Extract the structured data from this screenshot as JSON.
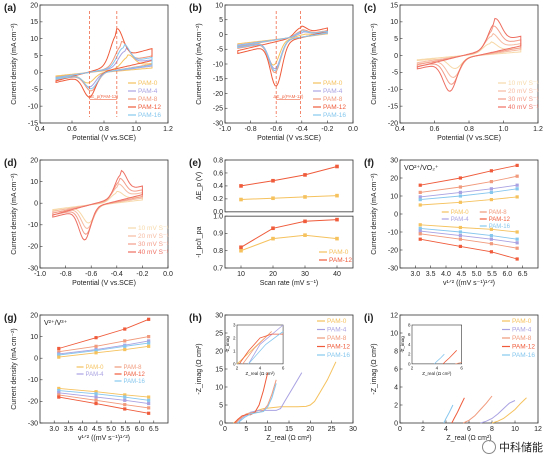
{
  "colors": {
    "PAM-0": "#f5c25e",
    "PAM-4": "#a9a2e2",
    "PAM-8": "#f19a7c",
    "PAM-12": "#ef5b3b",
    "PAM-16": "#86c7ee",
    "scan10": "#f7d9a9",
    "scan20": "#f6bba2",
    "scan30": "#f39c8a",
    "scan40": "#ee6f62",
    "dash": "#ef6a4a"
  },
  "watermark": "中科储能",
  "chart_data": [
    {
      "panel": "(a)",
      "type": "line",
      "xlabel": "Potential (V vs.SCE)",
      "ylabel": "Current density (mA cm⁻²)",
      "xlim": [
        0.4,
        1.2
      ],
      "ylim": [
        -15,
        20
      ],
      "xticks": [
        "0.4",
        "0.6",
        "0.8",
        "1.0",
        "1.2"
      ],
      "yticks": [
        "-15",
        "-10",
        "-5",
        "0",
        "5",
        "10",
        "15",
        "20"
      ],
      "annotation": "ΔE_p(PAM-12)",
      "legend": [
        "PAM-0",
        "PAM-4",
        "PAM-8",
        "PAM-12",
        "PAM-16"
      ],
      "legend_position": "bottom-right",
      "dashed_x": [
        0.71,
        0.88
      ],
      "cv": [
        {
          "name": "PAM-0",
          "x0": 0.5,
          "x1": 1.1,
          "ipa": 6,
          "ipc": -5,
          "pa": 0.95,
          "pc": 0.7
        },
        {
          "name": "PAM-4",
          "x0": 0.5,
          "x1": 1.1,
          "ipa": 8.5,
          "ipc": -7,
          "pa": 0.93,
          "pc": 0.71
        },
        {
          "name": "PAM-8",
          "x0": 0.5,
          "x1": 1.1,
          "ipa": 11,
          "ipc": -9,
          "pa": 0.91,
          "pc": 0.72
        },
        {
          "name": "PAM-12",
          "x0": 0.5,
          "x1": 1.1,
          "ipa": 16,
          "ipc": -12,
          "pa": 0.88,
          "pc": 0.71
        },
        {
          "name": "PAM-16",
          "x0": 0.5,
          "x1": 1.1,
          "ipa": 10,
          "ipc": -8,
          "pa": 0.92,
          "pc": 0.72
        }
      ]
    },
    {
      "panel": "(b)",
      "type": "line",
      "xlabel": "Potential (V vs.SCE)",
      "ylabel": "Current density (mA cm⁻²)",
      "xlim": [
        -1.0,
        0.0
      ],
      "ylim": [
        -30,
        10
      ],
      "xticks": [
        "-1.0",
        "-0.8",
        "-0.6",
        "-0.4",
        "-0.2",
        "0.0"
      ],
      "yticks": [
        "-30",
        "-25",
        "-20",
        "-15",
        "-10",
        "-5",
        "0",
        "5",
        "10"
      ],
      "annotation": "ΔE_p(PAM-12)",
      "legend": [
        "PAM-0",
        "PAM-4",
        "PAM-8",
        "PAM-12",
        "PAM-16"
      ],
      "legend_position": "bottom-right",
      "dashed_x": [
        -0.6,
        -0.41
      ],
      "cv": [
        {
          "name": "PAM-0",
          "x0": -0.9,
          "x1": -0.2,
          "ipa": 1,
          "ipc": -15,
          "pa": -0.38,
          "pc": -0.62
        },
        {
          "name": "PAM-4",
          "x0": -0.9,
          "x1": -0.2,
          "ipa": 2,
          "ipc": -17,
          "pa": -0.39,
          "pc": -0.61
        },
        {
          "name": "PAM-8",
          "x0": -0.9,
          "x1": -0.2,
          "ipa": 3,
          "ipc": -19,
          "pa": -0.4,
          "pc": -0.61
        },
        {
          "name": "PAM-12",
          "x0": -0.9,
          "x1": -0.2,
          "ipa": 5,
          "ipc": -26,
          "pa": -0.41,
          "pc": -0.6
        },
        {
          "name": "PAM-16",
          "x0": -0.9,
          "x1": -0.2,
          "ipa": 2.5,
          "ipc": -18,
          "pa": -0.4,
          "pc": -0.61
        }
      ]
    },
    {
      "panel": "(c)",
      "type": "line",
      "xlabel": "Potential (V vs.SCE)",
      "ylabel": "Current density (mA cm⁻²)",
      "xlim": [
        0.4,
        1.2
      ],
      "ylim": [
        -20,
        15
      ],
      "xticks": [
        "0.4",
        "0.6",
        "0.8",
        "1.0",
        "1.2"
      ],
      "yticks": [
        "-20",
        "-15",
        "-10",
        "-5",
        "0",
        "5",
        "10",
        "15"
      ],
      "legend": [
        "10 mV S⁻¹",
        "20 mV S⁻¹",
        "30 mV S⁻¹",
        "40 mV S⁻¹"
      ],
      "legend_position": "bottom-right",
      "cv": [
        {
          "name": "10 mV S⁻¹",
          "x0": 0.5,
          "x1": 1.1,
          "ipa": 5,
          "ipc": -6,
          "pa": 0.92,
          "pc": 0.72
        },
        {
          "name": "20 mV S⁻¹",
          "x0": 0.5,
          "x1": 1.1,
          "ipa": 8,
          "ipc": -10,
          "pa": 0.93,
          "pc": 0.71
        },
        {
          "name": "30 mV S⁻¹",
          "x0": 0.5,
          "x1": 1.1,
          "ipa": 10.5,
          "ipc": -13,
          "pa": 0.94,
          "pc": 0.7
        },
        {
          "name": "40 mV S⁻¹",
          "x0": 0.5,
          "x1": 1.1,
          "ipa": 13,
          "ipc": -16,
          "pa": 0.95,
          "pc": 0.69
        }
      ]
    },
    {
      "panel": "(d)",
      "type": "line",
      "xlabel": "Potential (V vs.SCE)",
      "ylabel": "Current density (mA cm⁻²)",
      "xlim": [
        -1.0,
        0.0
      ],
      "ylim": [
        -30,
        20
      ],
      "xticks": [
        "-1.0",
        "-0.8",
        "-0.6",
        "-0.4",
        "-0.2",
        "0.0"
      ],
      "yticks": [
        "-30",
        "-20",
        "-10",
        "0",
        "10",
        "20"
      ],
      "legend": [
        "10 mV S⁻¹",
        "20 mV S⁻¹",
        "30 mV S⁻¹",
        "40 mV S⁻¹"
      ],
      "legend_position": "bottom-right",
      "cv": [
        {
          "name": "10 mV S⁻¹",
          "x0": -0.9,
          "x1": -0.2,
          "ipa": 7,
          "ipc": -14,
          "pa": -0.4,
          "pc": -0.62
        },
        {
          "name": "20 mV S⁻¹",
          "x0": -0.9,
          "x1": -0.2,
          "ipa": 11,
          "ipc": -18,
          "pa": -0.39,
          "pc": -0.63
        },
        {
          "name": "30 mV S⁻¹",
          "x0": -0.9,
          "x1": -0.2,
          "ipa": 14,
          "ipc": -22,
          "pa": -0.38,
          "pc": -0.64
        },
        {
          "name": "40 mV S⁻¹",
          "x0": -0.9,
          "x1": -0.2,
          "ipa": 18,
          "ipc": -26,
          "pa": -0.37,
          "pc": -0.65
        }
      ]
    },
    {
      "panel": "(e)",
      "type": "line",
      "xlabel": "Scan rate (mV s⁻¹)",
      "x": [
        10,
        20,
        30,
        40
      ],
      "xticks": [
        "10",
        "20",
        "30",
        "40"
      ],
      "top": {
        "ylabel": "ΔE_p (V)",
        "ylim": [
          0.0,
          0.8
        ],
        "yticks": [
          "0.0",
          "0.2",
          "0.4",
          "0.6",
          "0.8"
        ],
        "series": [
          {
            "name": "PAM-12",
            "values": [
              0.4,
              0.48,
              0.57,
              0.7
            ]
          },
          {
            "name": "PAM-0",
            "values": [
              0.19,
              0.21,
              0.23,
              0.25
            ]
          }
        ]
      },
      "bottom": {
        "ylabel": "-I_pc/I_pa",
        "ylim": [
          0.7,
          1.0
        ],
        "yticks": [
          "0.7",
          "0.8",
          "0.9",
          "1.0"
        ],
        "legend": [
          "PAM-0",
          "PAM-12"
        ],
        "series": [
          {
            "name": "PAM-0",
            "values": [
              0.8,
              0.87,
              0.89,
              0.87
            ]
          },
          {
            "name": "PAM-12",
            "values": [
              0.82,
              0.93,
              0.97,
              0.98
            ]
          }
        ]
      }
    },
    {
      "panel": "(f)",
      "type": "scatter",
      "title_label": "VO²⁺/VO₂⁺",
      "xlabel": "v¹ᐟ² ((mV s⁻¹)¹ᐟ²)",
      "ylabel": "Current density (mA cm⁻²)",
      "xlim": [
        2.5,
        7.0
      ],
      "ylim": [
        -30,
        30
      ],
      "xticks": [
        "3.0",
        "3.5",
        "4.0",
        "4.5",
        "5.0",
        "5.5",
        "6.0",
        "6.5"
      ],
      "yticks": [
        "-30",
        "-20",
        "-10",
        "0",
        "10",
        "20",
        "30"
      ],
      "x": [
        3.16,
        4.47,
        5.48,
        6.32
      ],
      "legend": [
        "PAM-0",
        "PAM-4",
        "PAM-8",
        "PAM-12",
        "PAM-16"
      ],
      "series": [
        {
          "name": "PAM-12",
          "values": [
            16,
            20,
            24,
            27
          ]
        },
        {
          "name": "PAM-8",
          "values": [
            12,
            15,
            18,
            21
          ]
        },
        {
          "name": "PAM-4",
          "values": [
            9.5,
            12,
            14,
            16
          ]
        },
        {
          "name": "PAM-16",
          "values": [
            8,
            10,
            12,
            14
          ]
        },
        {
          "name": "PAM-0",
          "values": [
            5,
            6.5,
            8,
            9.5
          ]
        },
        {
          "name": "PAM-0",
          "values": [
            -6,
            -7.5,
            -8.5,
            -10
          ]
        },
        {
          "name": "PAM-16",
          "values": [
            -8,
            -10,
            -12,
            -14
          ]
        },
        {
          "name": "PAM-4",
          "values": [
            -9.5,
            -12,
            -14,
            -16
          ]
        },
        {
          "name": "PAM-8",
          "values": [
            -11,
            -14,
            -16.5,
            -19
          ]
        },
        {
          "name": "PAM-12",
          "values": [
            -14,
            -18,
            -21,
            -25
          ]
        }
      ]
    },
    {
      "panel": "(g)",
      "type": "scatter",
      "title_label": "V²⁺/V³⁺",
      "xlabel": "v¹ᐟ² ((mV s⁻¹)¹ᐟ²)",
      "ylabel": "Current density (mA cm⁻²)",
      "xlim": [
        2.5,
        7.0
      ],
      "ylim": [
        -30,
        20
      ],
      "xticks": [
        "3.0",
        "3.5",
        "4.0",
        "4.5",
        "5.0",
        "5.5",
        "6.0",
        "6.5"
      ],
      "yticks": [
        "-30",
        "-20",
        "-10",
        "0",
        "10",
        "20"
      ],
      "x": [
        3.16,
        4.47,
        5.48,
        6.32
      ],
      "legend": [
        "PAM-0",
        "PAM-4",
        "PAM-8",
        "PAM-12",
        "PAM-16"
      ],
      "series": [
        {
          "name": "PAM-12",
          "values": [
            4.5,
            9.5,
            13.5,
            18
          ]
        },
        {
          "name": "PAM-8",
          "values": [
            3,
            5.5,
            8,
            10
          ]
        },
        {
          "name": "PAM-4",
          "values": [
            2,
            4,
            6,
            8
          ]
        },
        {
          "name": "PAM-16",
          "values": [
            1.5,
            3.5,
            5.5,
            7
          ]
        },
        {
          "name": "PAM-0",
          "values": [
            0.5,
            2.5,
            4,
            5.5
          ]
        },
        {
          "name": "PAM-0",
          "values": [
            -14,
            -15.5,
            -17,
            -18
          ]
        },
        {
          "name": "PAM-16",
          "values": [
            -15,
            -16.5,
            -18,
            -19.5
          ]
        },
        {
          "name": "PAM-4",
          "values": [
            -16,
            -18,
            -19.5,
            -21
          ]
        },
        {
          "name": "PAM-8",
          "values": [
            -17,
            -19.5,
            -21.5,
            -23
          ]
        },
        {
          "name": "PAM-12",
          "values": [
            -18,
            -21,
            -23.5,
            -25.5
          ]
        }
      ]
    },
    {
      "panel": "(h)",
      "type": "line",
      "xlabel": "Z_real (Ω cm²)",
      "ylabel": "-Z_imag (Ω cm²)",
      "xlim": [
        0,
        30
      ],
      "ylim": [
        0,
        30
      ],
      "xticks": [
        "0",
        "5",
        "10",
        "15",
        "20",
        "25",
        "30"
      ],
      "yticks": [
        "0",
        "5",
        "10",
        "15",
        "20",
        "25",
        "30"
      ],
      "legend": [
        "PAM-0",
        "PAM-4",
        "PAM-8",
        "PAM-12",
        "PAM-16"
      ],
      "inset": {
        "xlabel": "Z_real (Ω cm²)",
        "ylabel": "-Z_imag",
        "xlim": [
          2,
          6
        ],
        "ylim": [
          0,
          3
        ],
        "xticks": [
          "2",
          "4",
          "6"
        ],
        "yticks": [
          "0",
          "1",
          "2",
          "3"
        ]
      },
      "series": [
        {
          "name": "PAM-0",
          "x": [
            2.0,
            5,
            9,
            13,
            17,
            19,
            20,
            21,
            22,
            24,
            26
          ],
          "y": [
            0,
            2.5,
            4,
            4.5,
            4.5,
            4.6,
            5,
            6,
            8,
            12,
            17
          ]
        },
        {
          "name": "PAM-4",
          "x": [
            3,
            4,
            6,
            8,
            10,
            12,
            13,
            14,
            16,
            18
          ],
          "y": [
            0,
            1.5,
            3,
            3.5,
            3.5,
            3.5,
            4,
            6,
            10,
            14
          ]
        },
        {
          "name": "PAM-8",
          "x": [
            2.5,
            3.5,
            5,
            7,
            8,
            9,
            10,
            11,
            12
          ],
          "y": [
            0,
            1.2,
            2.5,
            3,
            3,
            3.5,
            5,
            8,
            12
          ]
        },
        {
          "name": "PAM-12",
          "x": [
            2.2,
            3,
            4,
            5,
            6,
            7,
            8,
            9,
            10
          ],
          "y": [
            0,
            1,
            2,
            2.3,
            2.3,
            3,
            5,
            9,
            14
          ]
        },
        {
          "name": "PAM-16",
          "x": [
            3,
            4.5,
            6,
            8,
            9,
            10,
            11,
            12
          ],
          "y": [
            0,
            1.5,
            2.5,
            3,
            3.2,
            4.5,
            7,
            11
          ]
        }
      ]
    },
    {
      "panel": "(i)",
      "type": "line",
      "xlabel": "Z_real (Ω cm²)",
      "ylabel": "-Z_imag (Ω cm²)",
      "xlim": [
        0,
        12
      ],
      "ylim": [
        0,
        12
      ],
      "xticks": [
        "0",
        "2",
        "4",
        "6",
        "8",
        "10",
        "12"
      ],
      "yticks": [
        "0",
        "2",
        "4",
        "6",
        "8",
        "10",
        "12"
      ],
      "legend": [
        "PAM-0",
        "PAM-4",
        "PAM-8",
        "PAM-12",
        "PAM-16"
      ],
      "inset": {
        "xlabel": "Z_real (Ω cm²)",
        "ylabel": "-Z_imag",
        "xlim": [
          2,
          6
        ],
        "ylim": [
          0,
          8
        ],
        "xticks": [
          "2",
          "4",
          "6"
        ],
        "yticks": [
          "0",
          "2",
          "4",
          "6",
          "8"
        ]
      },
      "series": [
        {
          "name": "PAM-0",
          "x": [
            8.0,
            8.5,
            9,
            9.5,
            10,
            10.5,
            11
          ],
          "y": [
            0,
            0.2,
            0.5,
            1.0,
            1.5,
            2.2,
            2.8
          ]
        },
        {
          "name": "PAM-4",
          "x": [
            7,
            7.5,
            8,
            8.5,
            9,
            9.5,
            10
          ],
          "y": [
            0,
            0.2,
            0.5,
            1.0,
            1.6,
            2.2,
            2.5
          ]
        },
        {
          "name": "PAM-8",
          "x": [
            5.5,
            6,
            6.5,
            7,
            7.5,
            8
          ],
          "y": [
            0,
            0.3,
            0.8,
            1.5,
            2.2,
            3.0
          ]
        },
        {
          "name": "PAM-12",
          "x": [
            4.5,
            4.7,
            5,
            5.3,
            5.6
          ],
          "y": [
            0,
            0.5,
            1.2,
            2.0,
            2.8
          ]
        },
        {
          "name": "PAM-16",
          "x": [
            3.8,
            4.0,
            4.3,
            4.6
          ],
          "y": [
            0,
            0.5,
            1.2,
            2.0
          ]
        }
      ]
    }
  ]
}
